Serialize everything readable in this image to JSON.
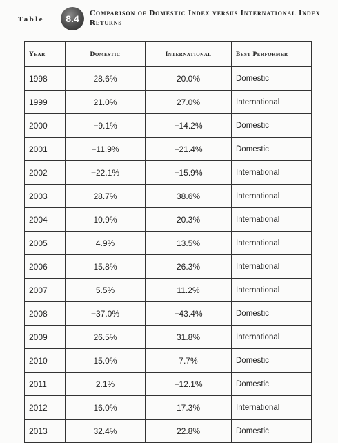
{
  "header": {
    "table_word": "Table",
    "table_number": "8.4",
    "title": "Comparison of Domestic Index versus International Index Returns"
  },
  "columns": {
    "year": "Year",
    "domestic": "Domestic",
    "international": "International",
    "best": "Best Performer"
  },
  "rows": [
    {
      "year": "1998",
      "domestic": "28.6%",
      "international": "20.0%",
      "best": "Domestic"
    },
    {
      "year": "1999",
      "domestic": "21.0%",
      "international": "27.0%",
      "best": "International"
    },
    {
      "year": "2000",
      "domestic": "−9.1%",
      "international": "−14.2%",
      "best": "Domestic"
    },
    {
      "year": "2001",
      "domestic": "−11.9%",
      "international": "−21.4%",
      "best": "Domestic"
    },
    {
      "year": "2002",
      "domestic": "−22.1%",
      "international": "−15.9%",
      "best": "International"
    },
    {
      "year": "2003",
      "domestic": "28.7%",
      "international": "38.6%",
      "best": "International"
    },
    {
      "year": "2004",
      "domestic": "10.9%",
      "international": "20.3%",
      "best": "International"
    },
    {
      "year": "2005",
      "domestic": "4.9%",
      "international": "13.5%",
      "best": "International"
    },
    {
      "year": "2006",
      "domestic": "15.8%",
      "international": "26.3%",
      "best": "International"
    },
    {
      "year": "2007",
      "domestic": "5.5%",
      "international": "11.2%",
      "best": "International"
    },
    {
      "year": "2008",
      "domestic": "−37.0%",
      "international": "−43.4%",
      "best": "Domestic"
    },
    {
      "year": "2009",
      "domestic": "26.5%",
      "international": "31.8%",
      "best": "International"
    },
    {
      "year": "2010",
      "domestic": "15.0%",
      "international": "7.7%",
      "best": "Domestic"
    },
    {
      "year": "2011",
      "domestic": "2.1%",
      "international": "−12.1%",
      "best": "Domestic"
    },
    {
      "year": "2012",
      "domestic": "16.0%",
      "international": "17.3%",
      "best": "International"
    },
    {
      "year": "2013",
      "domestic": "32.4%",
      "international": "22.8%",
      "best": "Domestic"
    }
  ]
}
